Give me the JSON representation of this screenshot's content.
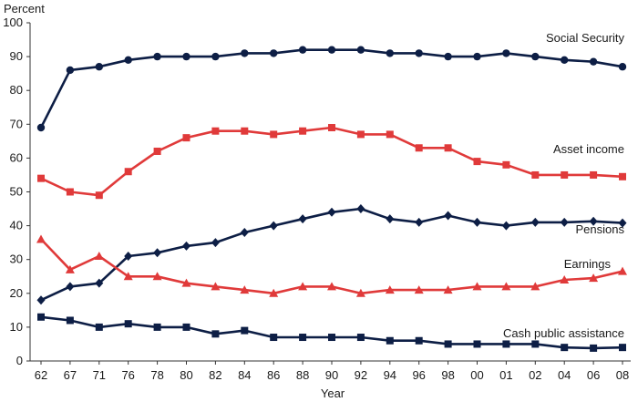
{
  "chart_data": {
    "type": "line",
    "ylabel": "Percent",
    "xlabel": "Year",
    "ylim": [
      0,
      100
    ],
    "yticks": [
      0,
      10,
      20,
      30,
      40,
      50,
      60,
      70,
      80,
      90,
      100
    ],
    "x": [
      1962,
      1967,
      1971,
      1976,
      1978,
      1980,
      1982,
      1984,
      1986,
      1988,
      1990,
      1992,
      1994,
      1996,
      1998,
      2000,
      2001,
      2002,
      2004,
      2006,
      2008
    ],
    "xticklabels": [
      "62",
      "67",
      "71",
      "76",
      "78",
      "80",
      "82",
      "84",
      "86",
      "88",
      "90",
      "92",
      "94",
      "96",
      "98",
      "00",
      "01",
      "02",
      "04",
      "06",
      "08"
    ],
    "grid": false,
    "series": [
      {
        "name": "Social Security",
        "color": "#0d1e45",
        "marker": "circle",
        "values": [
          69,
          86,
          87,
          89,
          90,
          90,
          90,
          91,
          91,
          92,
          92,
          92,
          91,
          91,
          90,
          90,
          91,
          90,
          89,
          88.5,
          87
        ]
      },
      {
        "name": "Asset income",
        "color": "#e03a3a",
        "marker": "square",
        "values": [
          54,
          50,
          49,
          56,
          62,
          66,
          68,
          68,
          67,
          68,
          69,
          67,
          67,
          63,
          63,
          59,
          58,
          55,
          55,
          55,
          54.5
        ]
      },
      {
        "name": "Pensions",
        "color": "#0d1e45",
        "marker": "diamond",
        "values": [
          18,
          22,
          23,
          31,
          32,
          34,
          35,
          38,
          40,
          42,
          44,
          45,
          42,
          41,
          43,
          41,
          40,
          41,
          41,
          41.3,
          40.8
        ]
      },
      {
        "name": "Earnings",
        "color": "#e03a3a",
        "marker": "triangle",
        "values": [
          36,
          27,
          31,
          25,
          25,
          23,
          22,
          21,
          20,
          22,
          22,
          20,
          21,
          21,
          21,
          22,
          22,
          22,
          24,
          24.5,
          26.5
        ]
      },
      {
        "name": "Cash public assistance",
        "color": "#0d1e45",
        "marker": "square",
        "values": [
          13,
          12,
          10,
          11,
          10,
          10,
          8,
          9,
          7,
          7,
          7,
          7,
          6,
          6,
          5,
          5,
          5,
          5,
          4,
          3.8,
          4
        ]
      }
    ]
  }
}
